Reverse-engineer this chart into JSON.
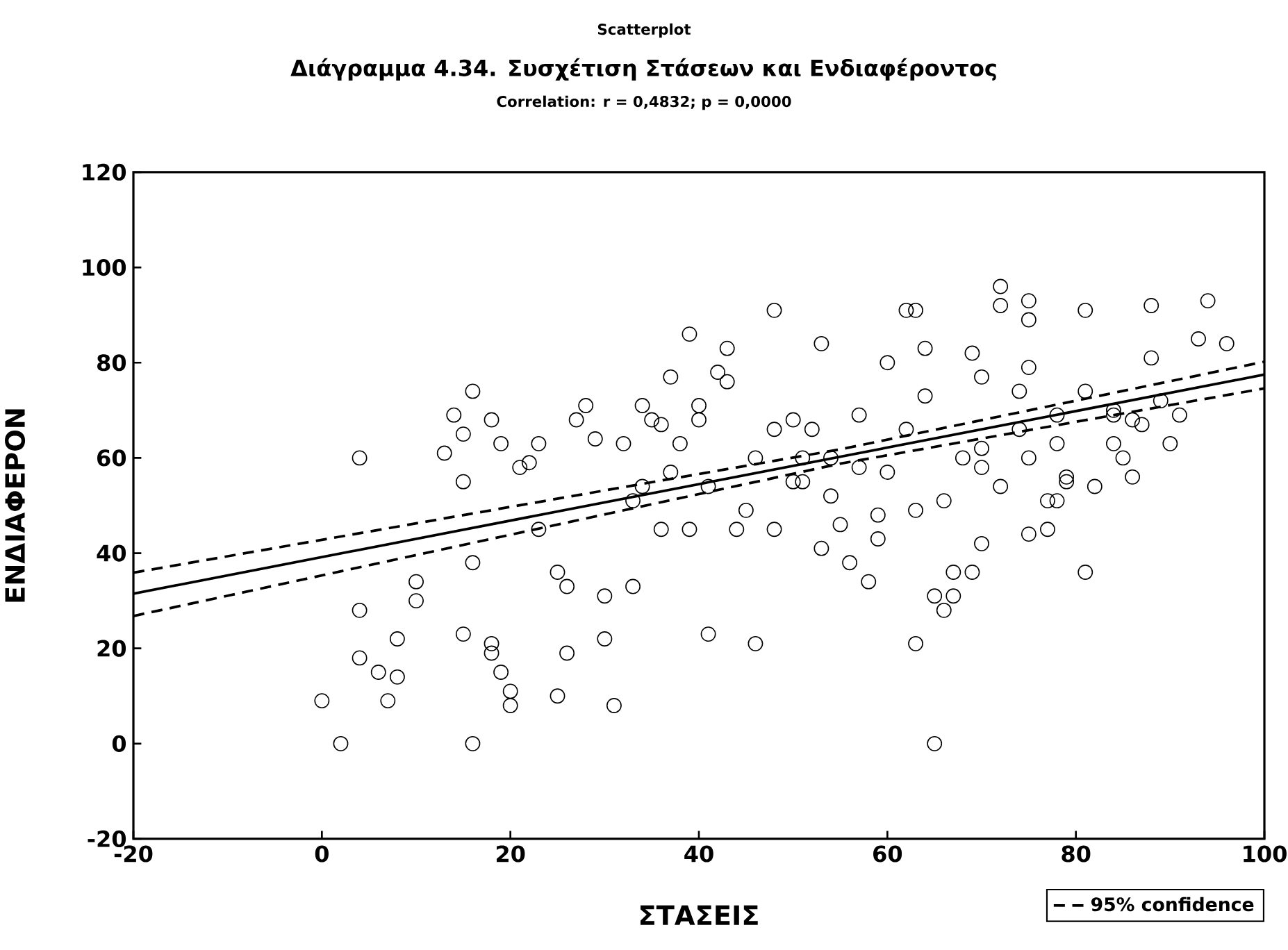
{
  "chart_data": {
    "type": "scatter",
    "title": "Scatterplot",
    "subtitle": "Διάγραμμα 4.34. Συσχέτιση Στάσεων και Ενδιαφέροντος",
    "annotations": [
      "Correlation: r = 0,4832; p = 0,0000"
    ],
    "xlabel": "ΣΤΑΣΕΙΣ",
    "ylabel": "ΕΝΔΙΑΦΕΡΟΝ",
    "xlim": [
      -20,
      100
    ],
    "ylim": [
      -20,
      120
    ],
    "xticks": [
      -20,
      0,
      20,
      40,
      60,
      80,
      100
    ],
    "yticks": [
      -20,
      0,
      20,
      40,
      60,
      80,
      100,
      120
    ],
    "legend": "bottom right",
    "series": [
      {
        "type": "scatter",
        "color": "#000000",
        "marker": "circle",
        "x": [
          0,
          2,
          4,
          4,
          4,
          6,
          7,
          8,
          8,
          10,
          10,
          13,
          14,
          15,
          15,
          15,
          16,
          16,
          16,
          18,
          18,
          18,
          19,
          20,
          19,
          20,
          21,
          22,
          23,
          23,
          25,
          25,
          26,
          26,
          27,
          28,
          29,
          30,
          30,
          31,
          33,
          33,
          34,
          34,
          35,
          36,
          37,
          37,
          39,
          39,
          38,
          40,
          41,
          42,
          43,
          44,
          45,
          46,
          48,
          50,
          50,
          51,
          52,
          53,
          54,
          55,
          56,
          57,
          58,
          59,
          60,
          62,
          63,
          63,
          64,
          64,
          63,
          65,
          65,
          66,
          67,
          67,
          69,
          70,
          70,
          70,
          70,
          72,
          72,
          74,
          75,
          75,
          75,
          75,
          77,
          77,
          78,
          78,
          79,
          81,
          81,
          81,
          82,
          84,
          84,
          85,
          86,
          88,
          88,
          89,
          90,
          91,
          93,
          94,
          96,
          86,
          87,
          43,
          46,
          48,
          51,
          54,
          57,
          60,
          62,
          66,
          68,
          72,
          74,
          78,
          40,
          41,
          36,
          32,
          59,
          48,
          53,
          69,
          75,
          79,
          84
        ],
        "values": [
          9,
          0,
          60,
          28,
          18,
          15,
          9,
          22,
          14,
          30,
          34,
          61,
          69,
          65,
          23,
          55,
          38,
          0,
          74,
          21,
          68,
          19,
          15,
          11,
          63,
          8,
          58,
          59,
          63,
          45,
          36,
          10,
          19,
          33,
          68,
          71,
          64,
          31,
          22,
          8,
          51,
          33,
          71,
          54,
          68,
          67,
          57,
          77,
          45,
          86,
          63,
          68,
          23,
          78,
          83,
          45,
          49,
          21,
          91,
          68,
          55,
          60,
          66,
          84,
          52,
          46,
          38,
          58,
          34,
          43,
          80,
          91,
          91,
          49,
          83,
          73,
          21,
          0,
          31,
          28,
          36,
          31,
          82,
          77,
          62,
          42,
          58,
          96,
          92,
          74,
          60,
          79,
          93,
          89,
          45,
          51,
          69,
          63,
          56,
          74,
          91,
          36,
          54,
          69,
          70,
          60,
          56,
          81,
          92,
          72,
          63,
          69,
          85,
          93,
          84,
          68,
          67,
          76,
          60,
          66,
          55,
          60,
          69,
          57,
          66,
          51,
          60,
          54,
          66,
          51,
          71,
          54,
          45,
          63,
          48,
          45,
          41,
          36,
          44,
          55,
          63
        ]
      },
      {
        "type": "line",
        "color": "#000000",
        "line_style": "solid",
        "x": [
          -20,
          100
        ],
        "values": [
          31.5,
          77.5
        ]
      },
      {
        "name": "95% confidence",
        "type": "line",
        "color": "#000000",
        "line_style": "dashed",
        "x": [
          -20,
          55,
          100
        ],
        "values": [
          35.9,
          61.8,
          80.2
        ]
      },
      {
        "type": "line",
        "color": "#000000",
        "line_style": "dashed",
        "x": [
          -20,
          55,
          100
        ],
        "values": [
          26.8,
          58.8,
          74.6
        ]
      }
    ]
  }
}
